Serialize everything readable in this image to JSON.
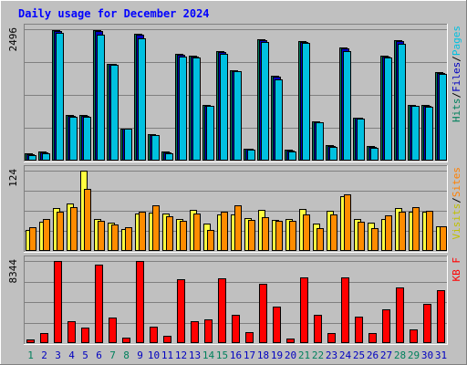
{
  "chart_data": {
    "type": "bar",
    "title": "Daily usage for December 2024",
    "categories": [
      "1",
      "2",
      "3",
      "4",
      "5",
      "6",
      "7",
      "8",
      "9",
      "10",
      "11",
      "12",
      "13",
      "14",
      "15",
      "16",
      "17",
      "18",
      "19",
      "20",
      "21",
      "22",
      "23",
      "24",
      "25",
      "26",
      "27",
      "28",
      "29",
      "30",
      "31"
    ],
    "weekend_days": [
      "1",
      "7",
      "8",
      "14",
      "15",
      "21",
      "22",
      "28",
      "29"
    ],
    "panels": [
      {
        "id": "hits",
        "ymax_label": "2496",
        "ymax": 2496,
        "legend": [
          {
            "text": "Hits",
            "color": "#00805c"
          },
          {
            "text": "/",
            "color": "#000000"
          },
          {
            "text": "Files",
            "color": "#0000c0"
          },
          {
            "text": "/",
            "color": "#000000"
          },
          {
            "text": "Pages",
            "color": "#00c0e0"
          }
        ],
        "series": [
          {
            "name": "Hits",
            "color": "#00805c",
            "values": [
              130,
              170,
              2470,
              870,
              870,
              2470,
              1840,
              610,
              2410,
              500,
              170,
              2020,
              1990,
              1050,
              2080,
              1710,
              230,
              2300,
              1610,
              200,
              2270,
              740,
              290,
              2150,
              820,
              270,
              1990,
              2280,
              1050,
              1050,
              1680
            ]
          },
          {
            "name": "Files",
            "color": "#0000c0",
            "values": [
              120,
              160,
              2460,
              850,
              850,
              2460,
              1830,
              600,
              2400,
              490,
              160,
              2010,
              1980,
              1040,
              2070,
              1700,
              220,
              2290,
              1600,
              190,
              2260,
              730,
              280,
              2140,
              810,
              260,
              1980,
              2270,
              1040,
              1040,
              1670
            ]
          },
          {
            "name": "Pages",
            "color": "#00c0e0",
            "values": [
              110,
              140,
              2420,
              840,
              840,
              2400,
              1820,
              600,
              2330,
              480,
              140,
              1970,
              1960,
              1040,
              2020,
              1690,
              210,
              2250,
              1540,
              180,
              2230,
              730,
              260,
              2080,
              800,
              250,
              1960,
              2220,
              1040,
              1030,
              1640
            ]
          }
        ]
      },
      {
        "id": "visits",
        "ymax_label": "124",
        "ymax": 124,
        "legend": [
          {
            "text": "Visits",
            "color": "#c0c000"
          },
          {
            "text": "/",
            "color": "#000000"
          },
          {
            "text": "Sites",
            "color": "#ff8000"
          }
        ],
        "series": [
          {
            "name": "Visits",
            "color": "#ffff40",
            "values": [
              32,
              45,
              66,
              73,
              124,
              50,
              44,
              34,
              58,
              59,
              58,
              49,
              63,
              42,
              57,
              56,
              51,
              63,
              48,
              50,
              65,
              42,
              62,
              84,
              49,
              43,
              50,
              66,
              60,
              60,
              38
            ]
          },
          {
            "name": "Sites",
            "color": "#ff8c00",
            "values": [
              36,
              50,
              61,
              68,
              96,
              46,
              41,
              37,
              60,
              70,
              53,
              47,
              58,
              32,
              60,
              70,
              48,
              52,
              47,
              46,
              56,
              35,
              56,
              88,
              45,
              35,
              55,
              61,
              68,
              62,
              38
            ]
          }
        ]
      },
      {
        "id": "kbytes",
        "ymax_label": "8344",
        "ymax": 8344,
        "legend": [
          {
            "text": "KB F",
            "color": "#ff0000"
          }
        ],
        "series": [
          {
            "name": "KB F",
            "color": "#ff0000",
            "values": [
              400,
              980,
              8340,
              2210,
              1560,
              7950,
              2550,
              570,
              8340,
              1640,
              720,
              6470,
              2180,
              2420,
              6590,
              2920,
              1150,
              5990,
              3740,
              490,
              6670,
              2910,
              1030,
              6660,
              2730,
              1060,
              3450,
              5620,
              1410,
              3970,
              5350
            ]
          }
        ]
      }
    ],
    "colors": {
      "background": "#c0c0c0",
      "plot_background": "#c0c0c0",
      "gridline": "#808080",
      "title": "#0000ff",
      "weekday_label": "#0000c0",
      "weekend_label": "#00805c"
    }
  }
}
